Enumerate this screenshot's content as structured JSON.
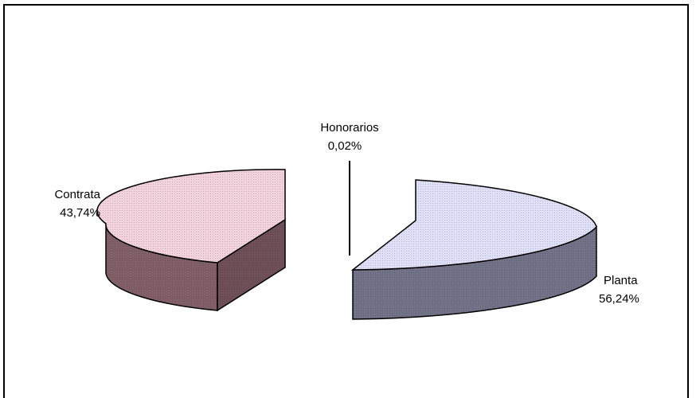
{
  "chart_data": {
    "type": "pie",
    "style": "3d-exploded",
    "title": "",
    "slices": [
      {
        "label": "Planta",
        "value_text": "56,24%",
        "value": 56.24,
        "top_color": "#dfe0f7",
        "side_color": "#727388"
      },
      {
        "label": "Honorarios",
        "value_text": "0,02%",
        "value": 0.02,
        "top_color": "#000000",
        "side_color": "#000000"
      },
      {
        "label": "Contrata",
        "value_text": "43,74%",
        "value": 43.74,
        "top_color": "#f2d2dc",
        "side_color": "#826068"
      }
    ],
    "legend": "none"
  }
}
